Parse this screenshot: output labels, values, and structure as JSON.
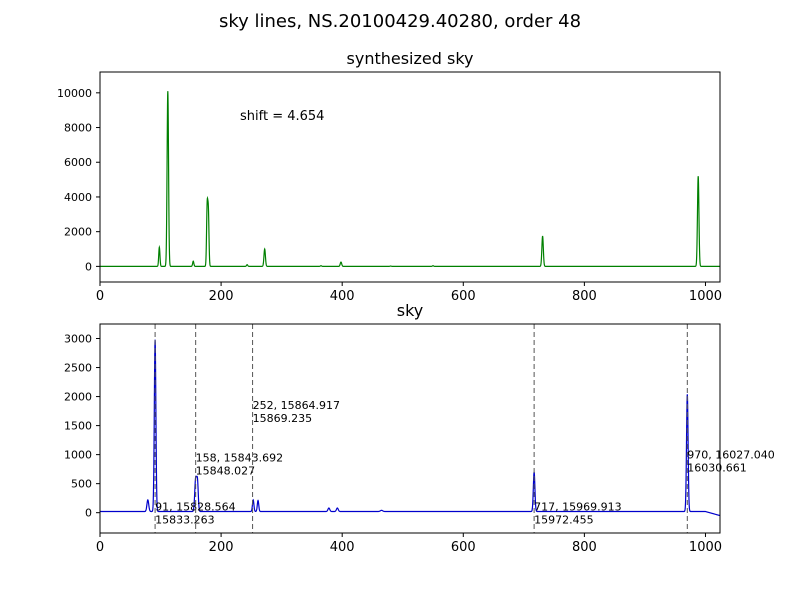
{
  "figure": {
    "title": "sky lines, NS.20100429.40280, order 48"
  },
  "chart_data": [
    {
      "type": "line",
      "title": "synthesized sky",
      "xlabel": "",
      "ylabel": "",
      "xlim": [
        0,
        1024
      ],
      "ylim": [
        -900,
        11200
      ],
      "xticks": [
        0,
        200,
        400,
        600,
        800,
        1000
      ],
      "yticks": [
        0,
        2000,
        4000,
        6000,
        8000,
        10000
      ],
      "grid": false,
      "line_color": "#008000",
      "annotation": "shift = 4.654",
      "peaks": [
        {
          "x": 98,
          "y": 1100,
          "w": 1.0
        },
        {
          "x": 112,
          "y": 10100,
          "w": 1.2
        },
        {
          "x": 154,
          "y": 300,
          "w": 1.0
        },
        {
          "x": 177,
          "y": 3350,
          "w": 1.0
        },
        {
          "x": 179,
          "y": 3000,
          "w": 1.0
        },
        {
          "x": 243,
          "y": 100,
          "w": 1.0
        },
        {
          "x": 272,
          "y": 1000,
          "w": 1.2
        },
        {
          "x": 365,
          "y": 40,
          "w": 1.0
        },
        {
          "x": 398,
          "y": 250,
          "w": 1.2
        },
        {
          "x": 480,
          "y": 20,
          "w": 1.0
        },
        {
          "x": 550,
          "y": 40,
          "w": 1.0
        },
        {
          "x": 731,
          "y": 1750,
          "w": 1.2
        },
        {
          "x": 988,
          "y": 5200,
          "w": 1.2
        }
      ]
    },
    {
      "type": "line",
      "title": "sky",
      "xlabel": "",
      "ylabel": "",
      "xlim": [
        0,
        1024
      ],
      "ylim": [
        -350,
        3250
      ],
      "xticks": [
        0,
        200,
        400,
        600,
        800,
        1000
      ],
      "yticks": [
        0,
        500,
        1000,
        1500,
        2000,
        2500,
        3000
      ],
      "grid": false,
      "line_color": "#0000cc",
      "baseline": 20,
      "peaks": [
        {
          "x": 79,
          "y": 200,
          "w": 1.5
        },
        {
          "x": 91,
          "y": 2960,
          "w": 1.3
        },
        {
          "x": 158,
          "y": 560,
          "w": 1.5
        },
        {
          "x": 161,
          "y": 500,
          "w": 1.3
        },
        {
          "x": 253,
          "y": 200,
          "w": 1.2
        },
        {
          "x": 261,
          "y": 190,
          "w": 1.2
        },
        {
          "x": 378,
          "y": 60,
          "w": 1.5
        },
        {
          "x": 392,
          "y": 60,
          "w": 1.5
        },
        {
          "x": 465,
          "y": 20,
          "w": 2.0
        },
        {
          "x": 717,
          "y": 680,
          "w": 1.3
        },
        {
          "x": 970,
          "y": 2020,
          "w": 1.3
        }
      ],
      "tail": {
        "x_start": 1000,
        "x_end": 1024,
        "y_end": -50
      },
      "vlines": [
        {
          "x": 91,
          "label1": "91, 15828.564",
          "label2": "15833.263",
          "label_y": 0
        },
        {
          "x": 158,
          "label1": "158, 15843.692",
          "label2": "15848.027",
          "label_y": 850
        },
        {
          "x": 252,
          "label1": "252, 15864.917",
          "label2": "15869.235",
          "label_y": 1750
        },
        {
          "x": 717,
          "label1": "717, 15969.913",
          "label2": "15972.455",
          "label_y": 0
        },
        {
          "x": 970,
          "label1": "970, 16027.040",
          "label2": "16030.661",
          "label_y": 900
        }
      ]
    }
  ]
}
